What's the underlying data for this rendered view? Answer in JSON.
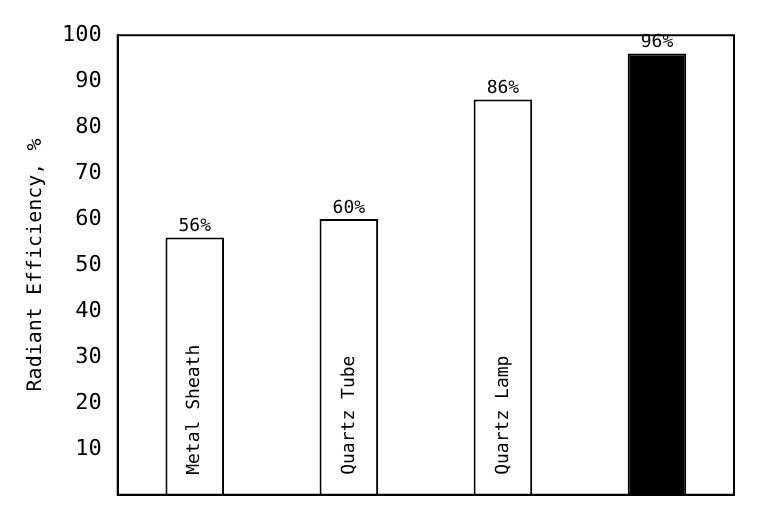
{
  "chart_data": {
    "type": "bar",
    "ylabel": "Radiant Efficiency, %",
    "categories": [
      "Metal Sheath",
      "Quartz Tube",
      "Quartz Lamp",
      null
    ],
    "values": [
      56,
      60,
      86,
      96
    ],
    "value_labels": [
      "56%",
      "60%",
      "86%",
      "96%"
    ],
    "colors": [
      "#ffffff",
      "#ffffff",
      "#ffffff",
      "#000000"
    ],
    "ylim": [
      0,
      100
    ],
    "yticks": [
      10,
      20,
      30,
      40,
      50,
      60,
      70,
      80,
      90,
      100
    ],
    "grid": false,
    "legend": false
  }
}
